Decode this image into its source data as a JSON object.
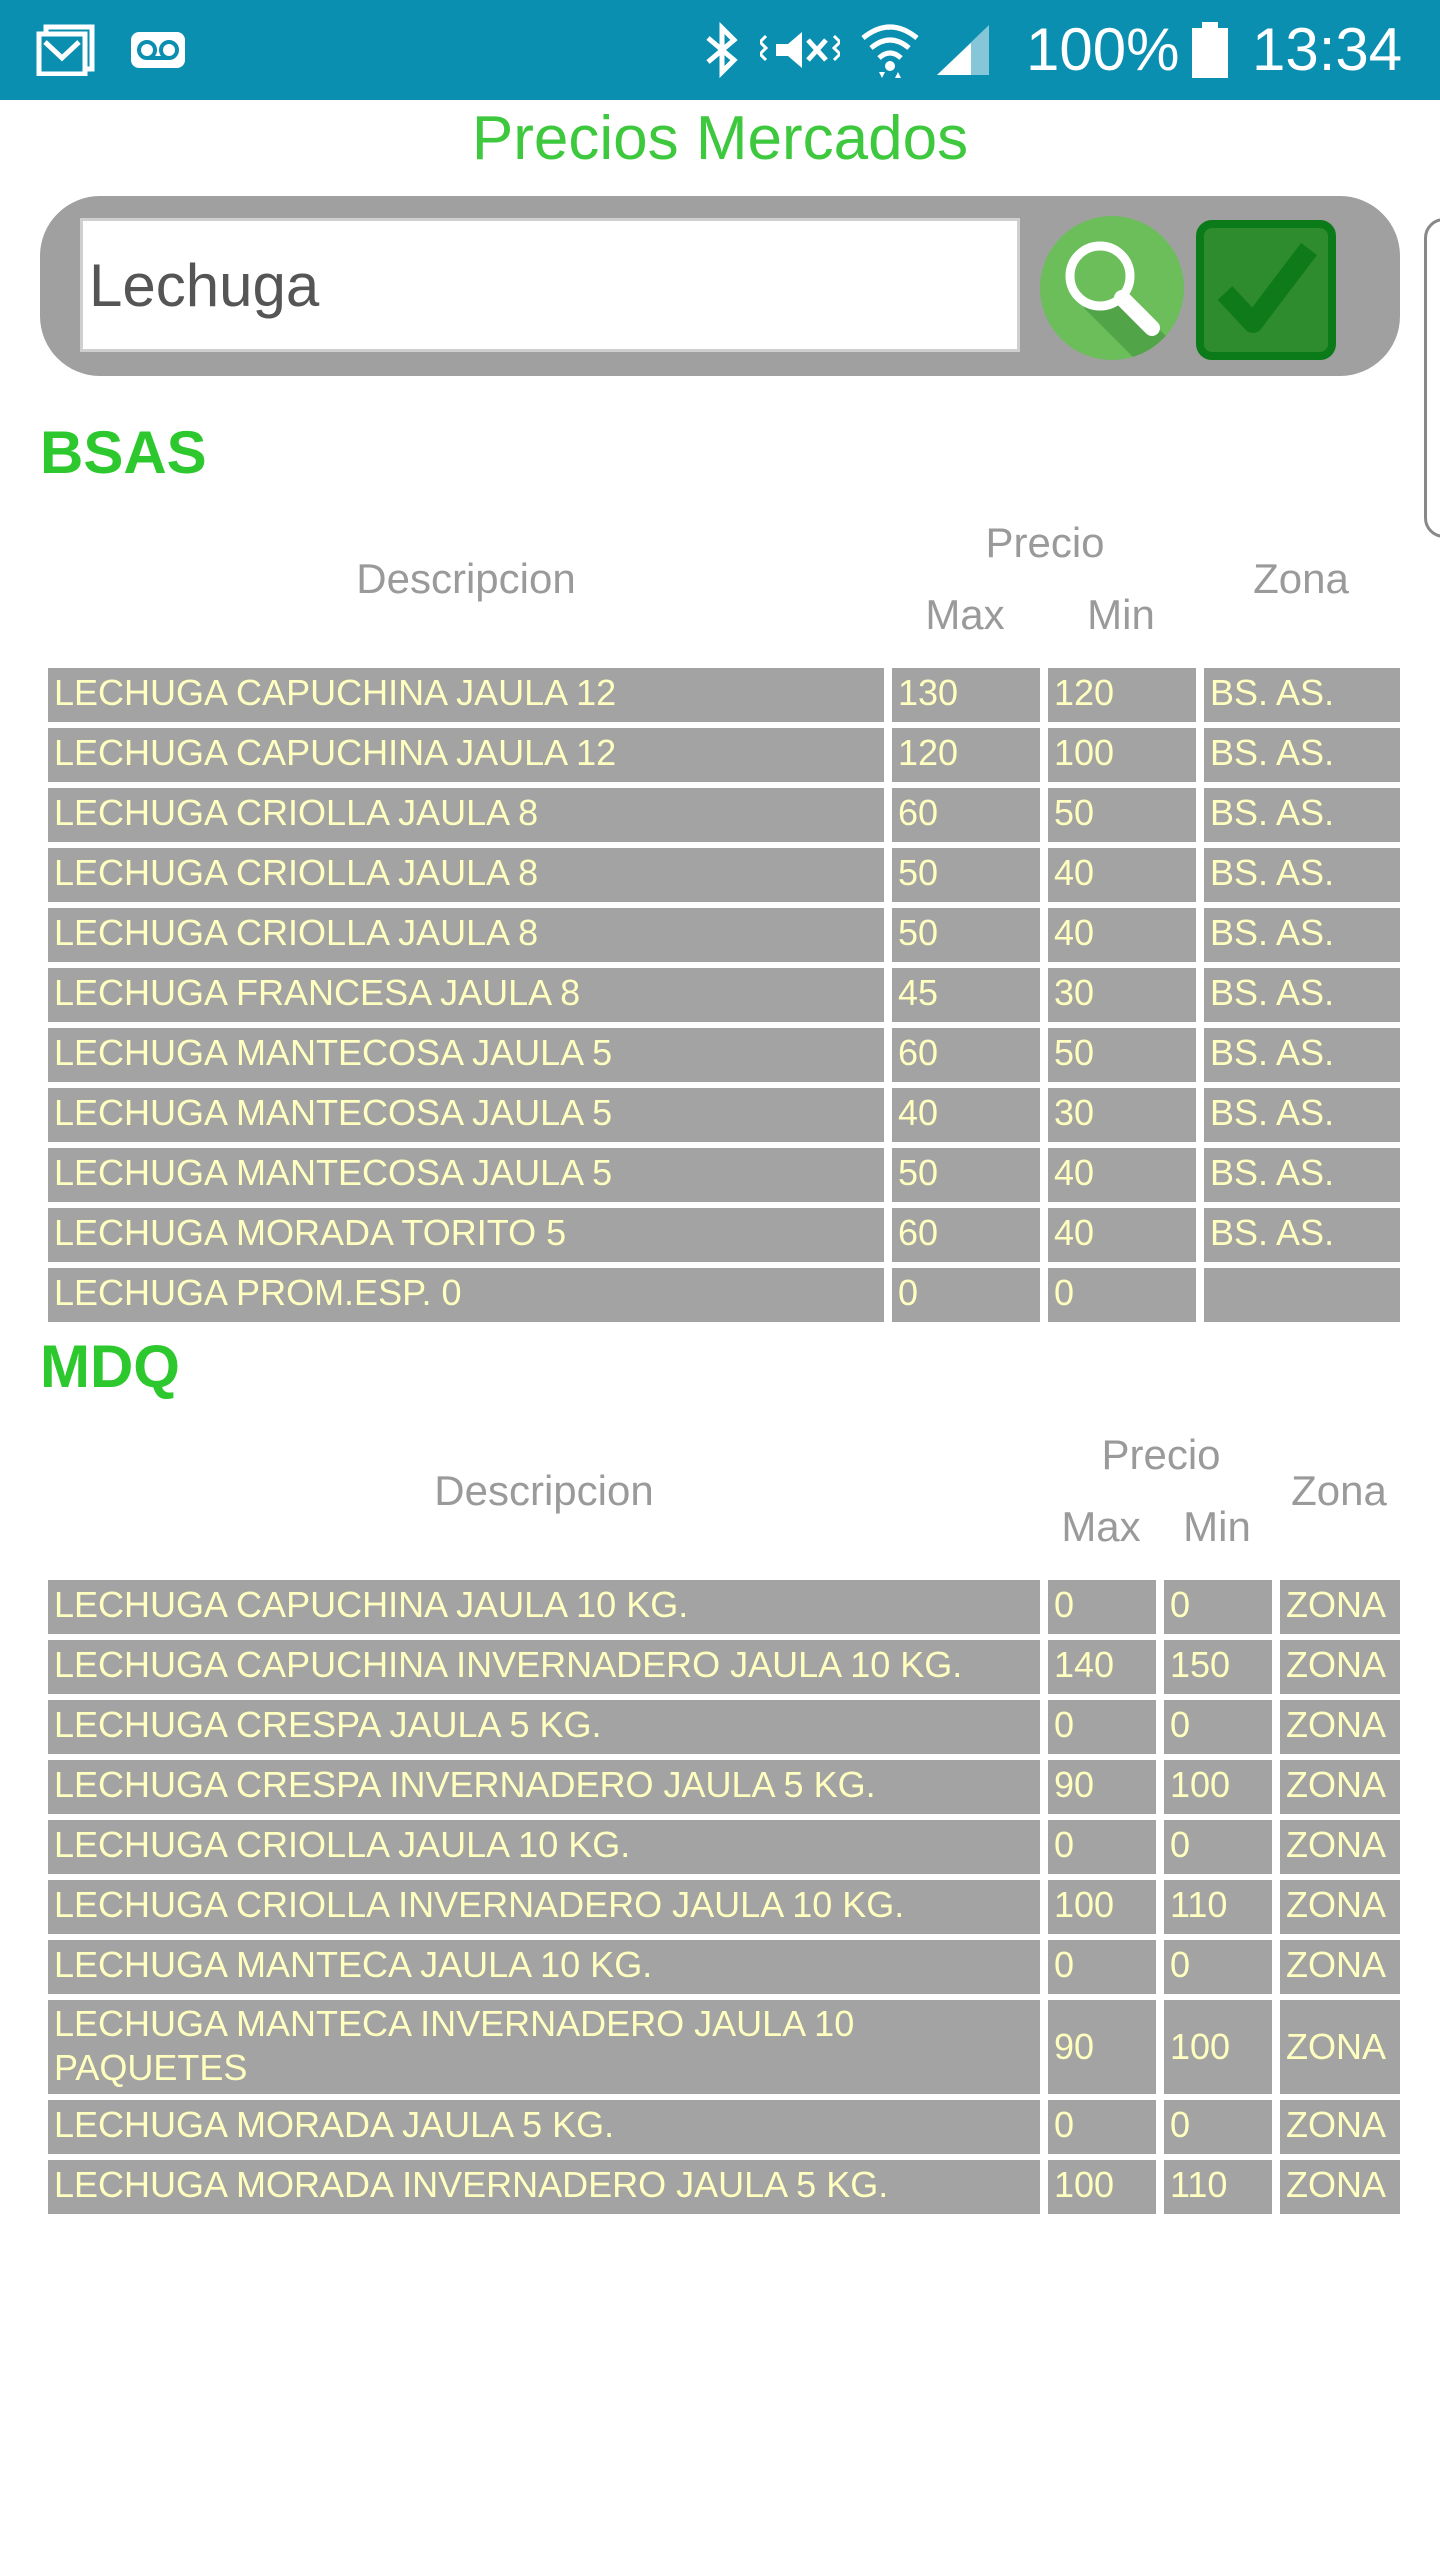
{
  "status_bar": {
    "battery_text": "100%",
    "time": "13:34",
    "icons": [
      "gmail-icon",
      "voicemail-icon",
      "bluetooth-icon",
      "vibrate-mute-icon",
      "wifi-icon",
      "cell-signal-icon",
      "battery-icon"
    ]
  },
  "app": {
    "title": "Precios Mercados"
  },
  "search": {
    "value": "Lechuga"
  },
  "colors": {
    "status_bar": "#0A8FB0",
    "title": "#3DC83D",
    "section": "#2DC82D",
    "cell_bg": "#A3A3A3",
    "cell_text": "#FFFFC0"
  },
  "bsas": {
    "title": "BSAS",
    "headers": {
      "descripcion": "Descripcion",
      "precio": "Precio",
      "max": "Max",
      "min": "Min",
      "zona": "Zona"
    },
    "rows": [
      {
        "desc": "LECHUGA CAPUCHINA JAULA 12",
        "max": "130",
        "min": "120",
        "zona": "BS. AS."
      },
      {
        "desc": "LECHUGA CAPUCHINA JAULA 12",
        "max": "120",
        "min": "100",
        "zona": "BS. AS."
      },
      {
        "desc": "LECHUGA CRIOLLA JAULA 8",
        "max": "60",
        "min": "50",
        "zona": "BS. AS."
      },
      {
        "desc": "LECHUGA CRIOLLA JAULA 8",
        "max": "50",
        "min": "40",
        "zona": "BS. AS."
      },
      {
        "desc": "LECHUGA CRIOLLA JAULA 8",
        "max": "50",
        "min": "40",
        "zona": "BS. AS."
      },
      {
        "desc": "LECHUGA FRANCESA JAULA 8",
        "max": "45",
        "min": "30",
        "zona": "BS. AS."
      },
      {
        "desc": "LECHUGA MANTECOSA JAULA 5",
        "max": "60",
        "min": "50",
        "zona": "BS. AS."
      },
      {
        "desc": "LECHUGA MANTECOSA JAULA 5",
        "max": "40",
        "min": "30",
        "zona": "BS. AS."
      },
      {
        "desc": "LECHUGA MANTECOSA JAULA 5",
        "max": "50",
        "min": "40",
        "zona": "BS. AS."
      },
      {
        "desc": "LECHUGA MORADA TORITO 5",
        "max": "60",
        "min": "40",
        "zona": "BS. AS."
      },
      {
        "desc": "LECHUGA PROM.ESP. 0",
        "max": "0",
        "min": "0",
        "zona": ""
      }
    ]
  },
  "mdq": {
    "title": "MDQ",
    "headers": {
      "descripcion": "Descripcion",
      "precio": "Precio",
      "max": "Max",
      "min": "Min",
      "zona": "Zona"
    },
    "rows": [
      {
        "desc": "LECHUGA CAPUCHINA JAULA 10 KG.",
        "max": "0",
        "min": "0",
        "zona": "ZONA"
      },
      {
        "desc": "LECHUGA CAPUCHINA INVERNADERO JAULA 10 KG.",
        "max": "140",
        "min": "150",
        "zona": "ZONA"
      },
      {
        "desc": "LECHUGA CRESPA JAULA 5 KG.",
        "max": "0",
        "min": "0",
        "zona": "ZONA"
      },
      {
        "desc": "LECHUGA CRESPA INVERNADERO JAULA 5 KG.",
        "max": "90",
        "min": "100",
        "zona": "ZONA"
      },
      {
        "desc": "LECHUGA CRIOLLA JAULA 10 KG.",
        "max": "0",
        "min": "0",
        "zona": "ZONA"
      },
      {
        "desc": "LECHUGA CRIOLLA INVERNADERO JAULA 10 KG.",
        "max": "100",
        "min": "110",
        "zona": "ZONA"
      },
      {
        "desc": "LECHUGA MANTECA JAULA 10 KG.",
        "max": "0",
        "min": "0",
        "zona": "ZONA"
      },
      {
        "desc": "LECHUGA MANTECA INVERNADERO JAULA 10 PAQUETES",
        "max": "90",
        "min": "100",
        "zona": "ZONA"
      },
      {
        "desc": "LECHUGA MORADA JAULA 5 KG.",
        "max": "0",
        "min": "0",
        "zona": "ZONA"
      },
      {
        "desc": "LECHUGA MORADA INVERNADERO JAULA 5 KG.",
        "max": "100",
        "min": "110",
        "zona": "ZONA"
      }
    ]
  }
}
